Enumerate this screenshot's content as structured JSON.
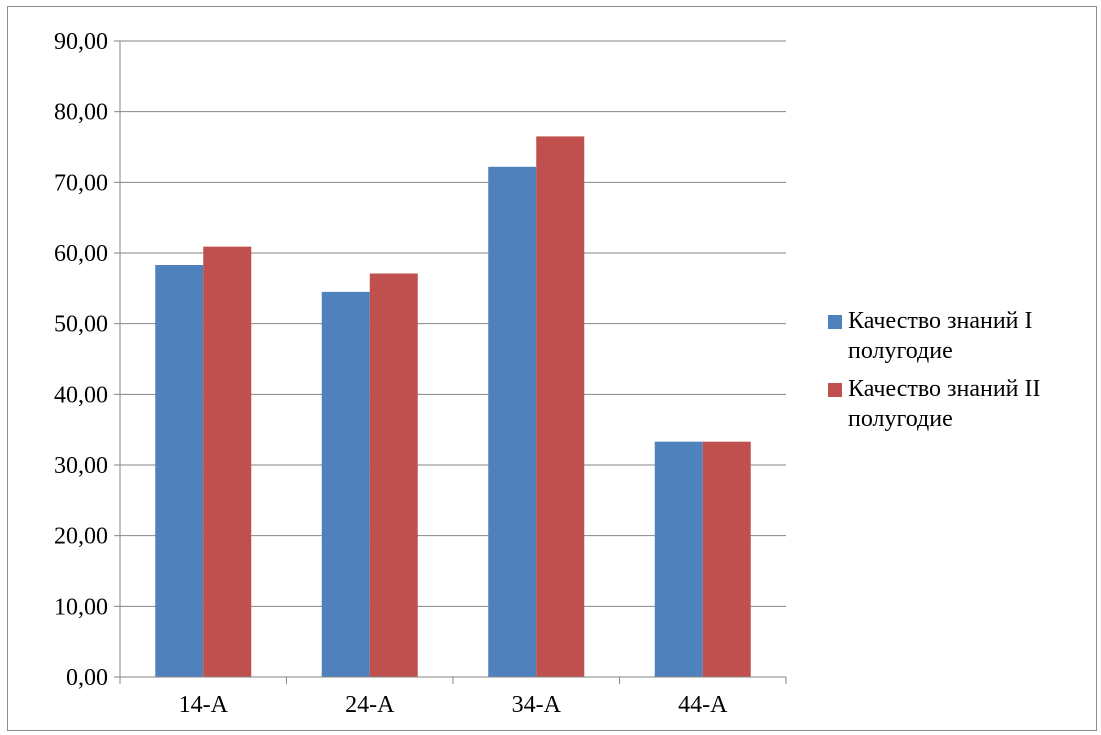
{
  "chart_data": {
    "type": "bar",
    "categories": [
      "14-А",
      "24-А",
      "34-А",
      "44-А"
    ],
    "series": [
      {
        "name": "Качество знаний I полугодие",
        "color": "#4F81BD",
        "values": [
          58.3,
          54.5,
          72.2,
          33.3
        ]
      },
      {
        "name": "Качество знаний II полугодие",
        "color": "#C0504D",
        "values": [
          60.9,
          57.1,
          76.5,
          33.3
        ]
      }
    ],
    "ylim": [
      0,
      90
    ],
    "yticks": [
      0,
      10,
      20,
      30,
      40,
      50,
      60,
      70,
      80,
      90
    ],
    "ytick_labels": [
      "0,00",
      "10,00",
      "20,00",
      "30,00",
      "40,00",
      "50,00",
      "60,00",
      "70,00",
      "80,00",
      "90,00"
    ],
    "grid": true,
    "legend_position": "right"
  },
  "legend": {
    "items": [
      {
        "line1": "Качество знаний I",
        "line2": "полугодие"
      },
      {
        "line1": "Качество знаний II",
        "line2": "полугодие"
      }
    ]
  }
}
